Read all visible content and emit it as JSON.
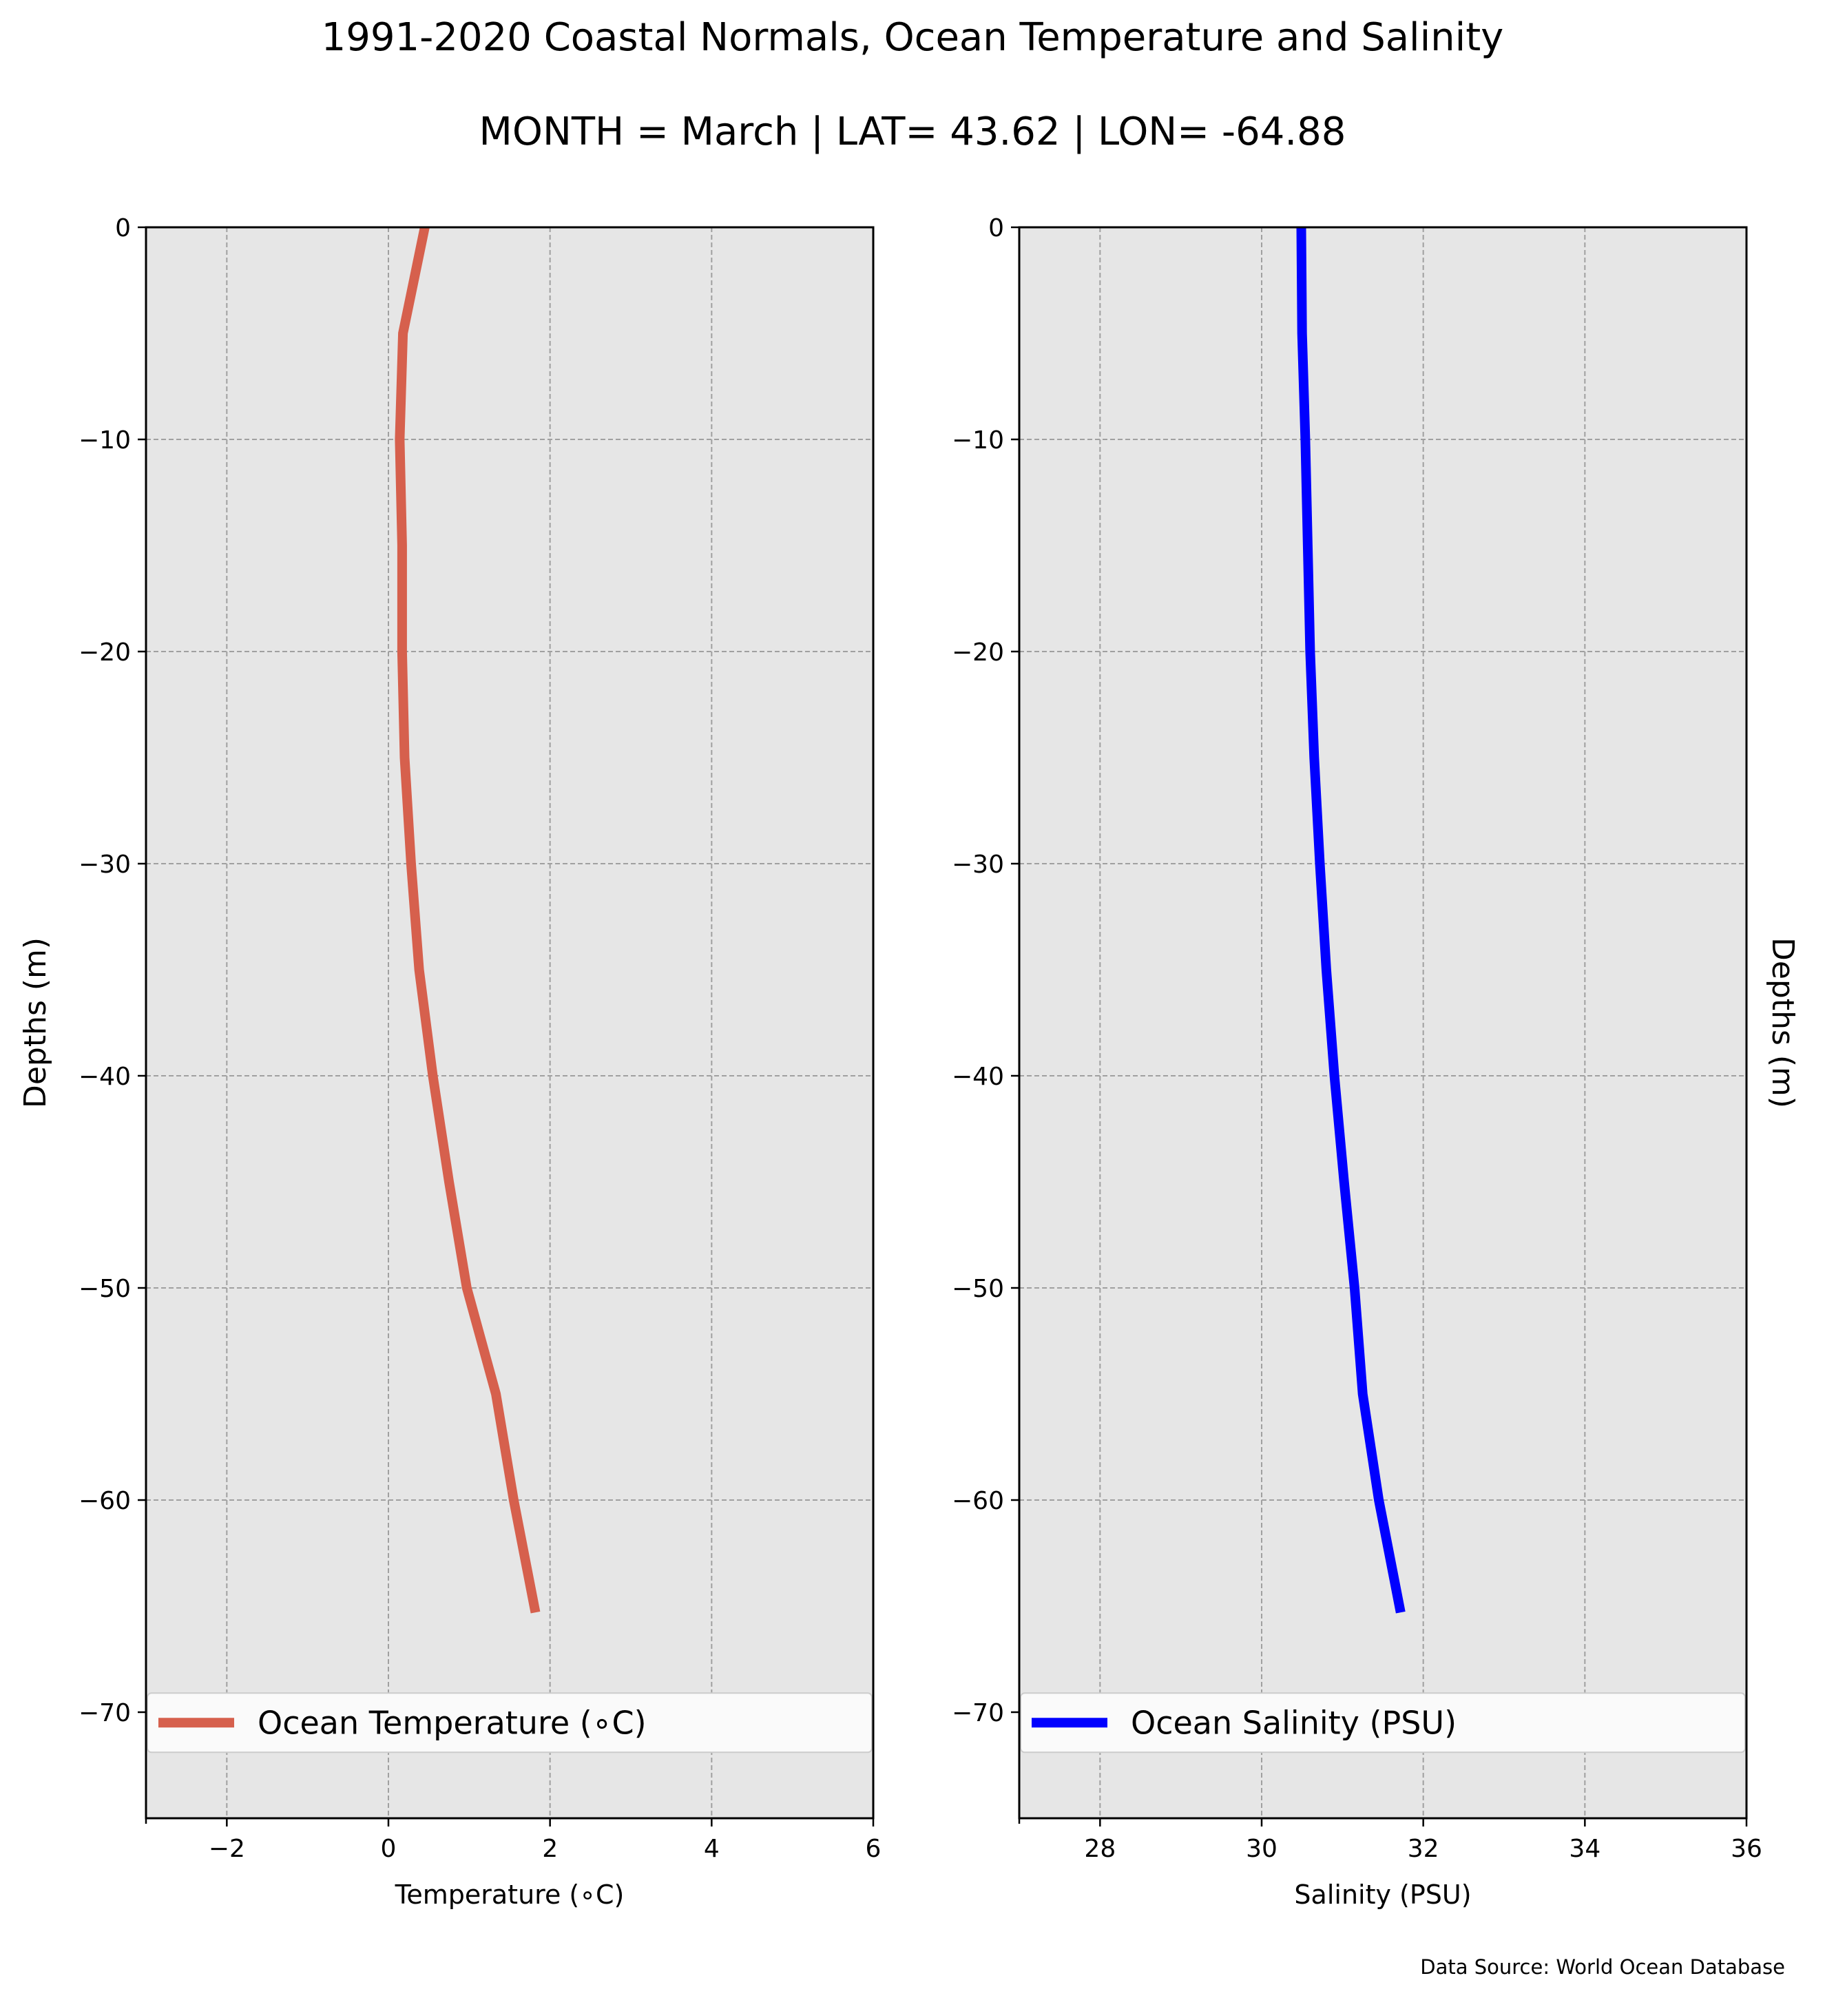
{
  "figure": {
    "title": "1991-2020 Coastal Normals, Ocean Temperature and Salinity",
    "subtitle": "MONTH = March | LAT= 43.62 | LON= -64.88",
    "source": "Data Source: World Ocean Database",
    "background": "#e6e6e6",
    "grid_color": "#a0a0a0"
  },
  "chart_data": [
    {
      "type": "line",
      "xlabel": "Temperature (∘C)",
      "ylabel": "Depths (m)",
      "xlim": [
        -3,
        6
      ],
      "ylim": [
        -75,
        0
      ],
      "xticks": [
        -2,
        0,
        2,
        4,
        6
      ],
      "yticks": [
        0,
        -10,
        -20,
        -30,
        -40,
        -50,
        -60,
        -70
      ],
      "grid": true,
      "legend": "bottom",
      "ylabel_side": "left",
      "series": [
        {
          "name": "Ocean Temperature (∘C)",
          "color": "#d6604d",
          "points": [
            {
              "x": 0.45,
              "y": 0
            },
            {
              "x": 0.18,
              "y": -5
            },
            {
              "x": 0.14,
              "y": -10
            },
            {
              "x": 0.17,
              "y": -15
            },
            {
              "x": 0.17,
              "y": -20
            },
            {
              "x": 0.2,
              "y": -25
            },
            {
              "x": 0.28,
              "y": -30
            },
            {
              "x": 0.38,
              "y": -35
            },
            {
              "x": 0.55,
              "y": -40
            },
            {
              "x": 0.75,
              "y": -45
            },
            {
              "x": 0.97,
              "y": -50
            },
            {
              "x": 1.33,
              "y": -55
            },
            {
              "x": 1.55,
              "y": -60
            },
            {
              "x": 1.82,
              "y": -65.3
            }
          ]
        }
      ]
    },
    {
      "type": "line",
      "xlabel": "Salinity (PSU)",
      "ylabel": "Depths (m)",
      "xlim": [
        27,
        36
      ],
      "ylim": [
        -75,
        0
      ],
      "xticks": [
        28,
        30,
        32,
        34,
        36
      ],
      "yticks": [
        0,
        -10,
        -20,
        -30,
        -40,
        -50,
        -60,
        -70
      ],
      "grid": true,
      "legend": "bottom",
      "ylabel_side": "right",
      "series": [
        {
          "name": "Ocean Salinity (PSU)",
          "color": "#0000ff",
          "points": [
            {
              "x": 30.49,
              "y": 0
            },
            {
              "x": 30.5,
              "y": -5
            },
            {
              "x": 30.54,
              "y": -10
            },
            {
              "x": 30.57,
              "y": -15
            },
            {
              "x": 30.6,
              "y": -20
            },
            {
              "x": 30.65,
              "y": -25
            },
            {
              "x": 30.72,
              "y": -30
            },
            {
              "x": 30.8,
              "y": -35
            },
            {
              "x": 30.9,
              "y": -40
            },
            {
              "x": 31.02,
              "y": -45
            },
            {
              "x": 31.15,
              "y": -50
            },
            {
              "x": 31.25,
              "y": -55
            },
            {
              "x": 31.45,
              "y": -60
            },
            {
              "x": 31.72,
              "y": -65.3
            }
          ]
        }
      ]
    }
  ]
}
